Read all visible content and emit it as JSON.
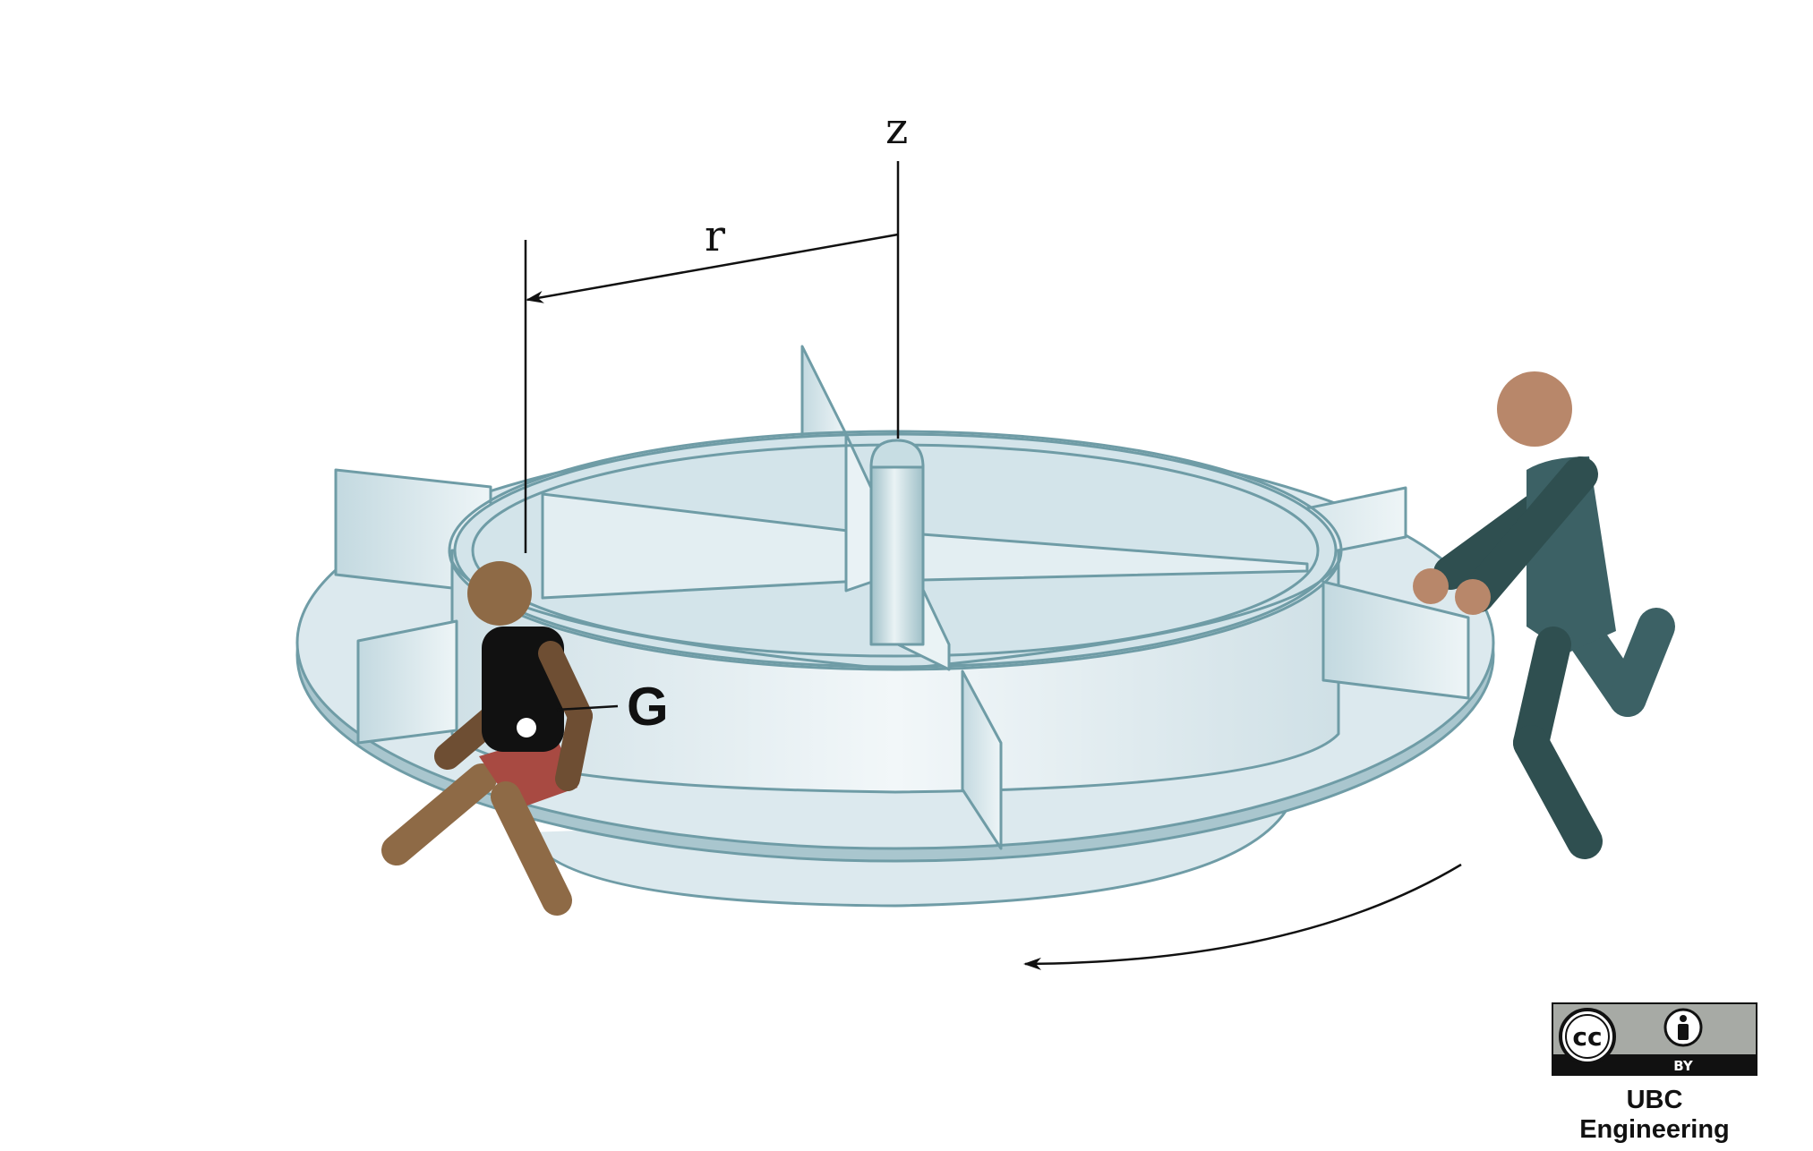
{
  "labels": {
    "axis": "z",
    "radius": "r",
    "center_of_mass": "G"
  },
  "license": {
    "cc": "cc",
    "by": "BY",
    "credit": "UBC Engineering"
  },
  "colors": {
    "platform_fill": "#dce9ee",
    "platform_stroke": "#6f9ca6",
    "child_skin": "#8e6a46",
    "child_shirt": "#111111",
    "child_shorts": "#a84a42",
    "adult_skin": "#b8876a",
    "adult_clothes": "#2f4f50"
  }
}
